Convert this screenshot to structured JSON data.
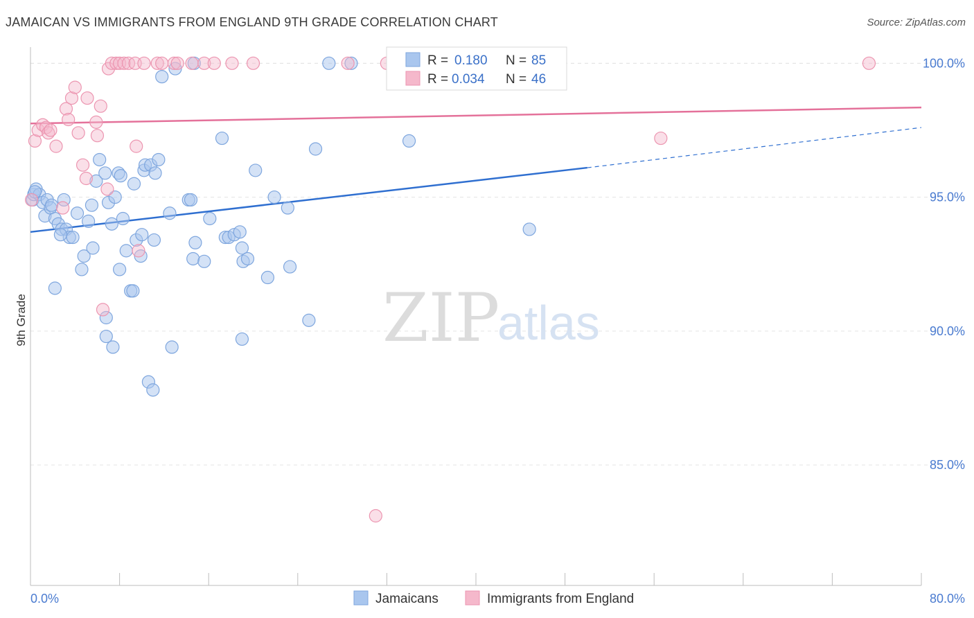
{
  "title": "JAMAICAN VS IMMIGRANTS FROM ENGLAND 9TH GRADE CORRELATION CHART",
  "source": "Source: ZipAtlas.com",
  "watermark": {
    "zip": "ZIP",
    "atlas": "atlas"
  },
  "legend_box": {
    "rows": [
      {
        "r_label": "R =",
        "r_value": "0.180",
        "n_label": "N =",
        "n_value": "85",
        "color": "#a9c6ee"
      },
      {
        "r_label": "R =",
        "r_value": "0.034",
        "n_label": "N =",
        "n_value": "46",
        "color": "#f5b8cb"
      }
    ]
  },
  "bottom_legend": [
    {
      "label": "Jamaicans",
      "color": "#a9c6ee"
    },
    {
      "label": "Immigrants from England",
      "color": "#f5b8cb"
    }
  ],
  "colors": {
    "blue_fill": "#a9c6ee",
    "blue_stroke": "#7ea6de",
    "blue_line": "#2f6fd0",
    "pink_fill": "#f5b8cb",
    "pink_stroke": "#ec95b0",
    "pink_line": "#e4719a",
    "grid": "#e3e3e3",
    "tick_text": "#4a7bd0"
  },
  "chart_data": {
    "type": "scatter",
    "title": "JAMAICAN VS IMMIGRANTS FROM ENGLAND 9TH GRADE CORRELATION CHART",
    "xlabel": "",
    "ylabel": "9th Grade",
    "xlim": [
      0,
      80
    ],
    "ylim": [
      80.5,
      100.5
    ],
    "x_tick_labels": [
      "0.0%",
      "80.0%"
    ],
    "y_ticks": [
      85,
      90,
      95,
      100
    ],
    "y_tick_labels": [
      "85.0%",
      "90.0%",
      "95.0%",
      "100.0%"
    ],
    "grid": "horizontal dashed",
    "legend_position": "top-center",
    "series": [
      {
        "name": "Jamaicans",
        "r": 0.18,
        "n": 85,
        "trend": {
          "x": [
            0,
            50
          ],
          "y": [
            93.7,
            96.1
          ],
          "dashed_extension": {
            "x": [
              50,
              80
            ],
            "y": [
              96.1,
              97.6
            ]
          }
        },
        "points": [
          [
            0.2,
            94.9
          ],
          [
            0.3,
            95.1
          ],
          [
            0.5,
            95.3
          ],
          [
            0.8,
            95.1
          ],
          [
            1.1,
            94.8
          ],
          [
            1.3,
            94.3
          ],
          [
            1.5,
            94.9
          ],
          [
            1.8,
            94.6
          ],
          [
            2.2,
            94.2
          ],
          [
            2.5,
            94.0
          ],
          [
            2.8,
            93.8
          ],
          [
            3.0,
            94.9
          ],
          [
            3.2,
            93.8
          ],
          [
            3.5,
            93.5
          ],
          [
            3.8,
            93.5
          ],
          [
            4.2,
            94.4
          ],
          [
            4.6,
            92.3
          ],
          [
            4.8,
            92.8
          ],
          [
            5.2,
            94.1
          ],
          [
            5.5,
            94.7
          ],
          [
            5.9,
            95.6
          ],
          [
            6.2,
            96.4
          ],
          [
            6.7,
            95.9
          ],
          [
            7.0,
            94.8
          ],
          [
            7.3,
            94.0
          ],
          [
            7.6,
            95.0
          ],
          [
            7.9,
            95.9
          ],
          [
            8.1,
            95.8
          ],
          [
            8.3,
            94.2
          ],
          [
            8.6,
            93.0
          ],
          [
            9.0,
            91.5
          ],
          [
            9.2,
            91.5
          ],
          [
            9.3,
            95.5
          ],
          [
            9.5,
            93.4
          ],
          [
            9.9,
            92.8
          ],
          [
            10.0,
            93.6
          ],
          [
            10.2,
            96.0
          ],
          [
            10.3,
            96.2
          ],
          [
            10.8,
            96.2
          ],
          [
            11.1,
            93.4
          ],
          [
            11.2,
            95.9
          ],
          [
            11.5,
            96.4
          ],
          [
            11.8,
            99.5
          ],
          [
            12.5,
            94.4
          ],
          [
            12.7,
            89.4
          ],
          [
            13.0,
            99.8
          ],
          [
            14.2,
            94.9
          ],
          [
            14.4,
            94.9
          ],
          [
            14.6,
            92.7
          ],
          [
            14.8,
            93.3
          ],
          [
            15.6,
            92.6
          ],
          [
            16.1,
            94.2
          ],
          [
            17.2,
            97.2
          ],
          [
            17.5,
            93.5
          ],
          [
            17.8,
            93.5
          ],
          [
            18.3,
            93.6
          ],
          [
            18.8,
            93.7
          ],
          [
            19.0,
            93.1
          ],
          [
            19.1,
            92.6
          ],
          [
            19.5,
            92.7
          ],
          [
            20.2,
            96.0
          ],
          [
            21.3,
            92.0
          ],
          [
            21.9,
            95.0
          ],
          [
            23.1,
            94.6
          ],
          [
            23.3,
            92.4
          ],
          [
            25.0,
            90.4
          ],
          [
            25.6,
            96.8
          ],
          [
            26.8,
            100.0
          ],
          [
            28.8,
            100.0
          ],
          [
            34.0,
            97.1
          ],
          [
            36.4,
            100.0
          ],
          [
            44.8,
            93.8
          ],
          [
            2.2,
            91.6
          ],
          [
            6.8,
            90.5
          ],
          [
            6.8,
            89.8
          ],
          [
            7.4,
            89.4
          ],
          [
            10.6,
            88.1
          ],
          [
            11.0,
            87.8
          ],
          [
            19.0,
            89.7
          ],
          [
            14.7,
            100.0
          ],
          [
            0.4,
            95.2
          ],
          [
            1.9,
            94.7
          ],
          [
            2.7,
            93.6
          ],
          [
            5.6,
            93.1
          ],
          [
            8.0,
            92.3
          ]
        ]
      },
      {
        "name": "Immigrants from England",
        "r": 0.034,
        "n": 46,
        "trend": {
          "x": [
            0,
            80
          ],
          "y": [
            97.75,
            98.35
          ]
        },
        "points": [
          [
            0.1,
            94.9
          ],
          [
            0.4,
            97.1
          ],
          [
            0.7,
            97.5
          ],
          [
            1.1,
            97.7
          ],
          [
            1.4,
            97.6
          ],
          [
            1.6,
            97.4
          ],
          [
            1.8,
            97.5
          ],
          [
            2.3,
            96.9
          ],
          [
            2.9,
            94.6
          ],
          [
            3.2,
            98.3
          ],
          [
            3.4,
            97.9
          ],
          [
            3.7,
            98.7
          ],
          [
            4.0,
            99.1
          ],
          [
            4.3,
            97.4
          ],
          [
            4.7,
            96.2
          ],
          [
            5.0,
            95.7
          ],
          [
            5.1,
            98.7
          ],
          [
            5.9,
            97.8
          ],
          [
            6.0,
            97.3
          ],
          [
            6.3,
            98.4
          ],
          [
            6.5,
            90.8
          ],
          [
            6.9,
            95.3
          ],
          [
            7.0,
            99.8
          ],
          [
            7.3,
            100.0
          ],
          [
            7.7,
            100.0
          ],
          [
            8.0,
            100.0
          ],
          [
            8.4,
            100.0
          ],
          [
            8.8,
            100.0
          ],
          [
            9.4,
            100.0
          ],
          [
            9.5,
            96.9
          ],
          [
            9.7,
            93.0
          ],
          [
            10.2,
            100.0
          ],
          [
            11.4,
            100.0
          ],
          [
            11.8,
            100.0
          ],
          [
            12.9,
            100.0
          ],
          [
            14.5,
            100.0
          ],
          [
            15.6,
            100.0
          ],
          [
            16.5,
            100.0
          ],
          [
            18.1,
            100.0
          ],
          [
            20.0,
            100.0
          ],
          [
            28.5,
            100.0
          ],
          [
            32.0,
            100.0
          ],
          [
            56.6,
            97.2
          ],
          [
            75.3,
            100.0
          ],
          [
            31.0,
            83.1
          ],
          [
            13.2,
            100.0
          ]
        ]
      }
    ]
  }
}
